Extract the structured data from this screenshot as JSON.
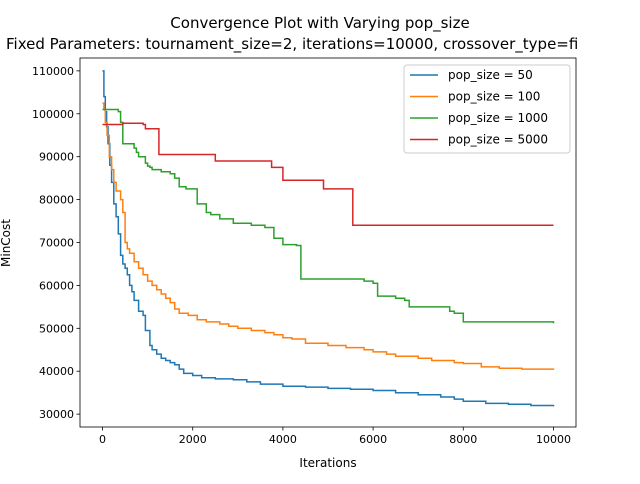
{
  "chart_data": {
    "type": "line",
    "title": "Convergence Plot with Varying pop_size",
    "subtitle": "Fixed Parameters: tournament_size=2, iterations=10000, crossover_type=fi",
    "xlabel": "Iterations",
    "ylabel": "MinCost",
    "xlim": [
      -500,
      10500
    ],
    "ylim": [
      27000,
      113000
    ],
    "xticks": [
      0,
      2000,
      4000,
      6000,
      8000,
      10000
    ],
    "yticks": [
      30000,
      40000,
      50000,
      60000,
      70000,
      80000,
      90000,
      100000,
      110000
    ],
    "xtick_labels": [
      "0",
      "2000",
      "4000",
      "6000",
      "8000",
      "10000"
    ],
    "ytick_labels": [
      "30000",
      "40000",
      "50000",
      "60000",
      "70000",
      "80000",
      "90000",
      "100000",
      "110000"
    ],
    "grid": false,
    "legend_position": "top-right",
    "series": [
      {
        "name": "pop_size = 50",
        "color": "#1f77b4",
        "points": [
          [
            0,
            110000
          ],
          [
            30,
            104000
          ],
          [
            60,
            100500
          ],
          [
            90,
            97000
          ],
          [
            120,
            93000
          ],
          [
            160,
            88000
          ],
          [
            200,
            84000
          ],
          [
            250,
            79000
          ],
          [
            300,
            76000
          ],
          [
            350,
            72000
          ],
          [
            400,
            67000
          ],
          [
            450,
            65000
          ],
          [
            500,
            64000
          ],
          [
            550,
            62500
          ],
          [
            600,
            60000
          ],
          [
            650,
            58500
          ],
          [
            700,
            56500
          ],
          [
            800,
            54000
          ],
          [
            900,
            53000
          ],
          [
            950,
            49500
          ],
          [
            1050,
            46000
          ],
          [
            1100,
            45000
          ],
          [
            1200,
            44000
          ],
          [
            1300,
            43000
          ],
          [
            1400,
            42500
          ],
          [
            1500,
            42000
          ],
          [
            1600,
            41500
          ],
          [
            1700,
            40500
          ],
          [
            1800,
            39500
          ],
          [
            2000,
            39000
          ],
          [
            2200,
            38500
          ],
          [
            2500,
            38200
          ],
          [
            2900,
            38000
          ],
          [
            3200,
            37500
          ],
          [
            3500,
            37000
          ],
          [
            4000,
            36500
          ],
          [
            4500,
            36300
          ],
          [
            5000,
            36000
          ],
          [
            5500,
            35800
          ],
          [
            6000,
            35500
          ],
          [
            6500,
            35000
          ],
          [
            7000,
            34500
          ],
          [
            7500,
            34000
          ],
          [
            7800,
            33500
          ],
          [
            8000,
            33000
          ],
          [
            8500,
            32500
          ],
          [
            9000,
            32300
          ],
          [
            9500,
            32000
          ],
          [
            10000,
            31800
          ]
        ]
      },
      {
        "name": "pop_size = 100",
        "color": "#ff7f0e",
        "points": [
          [
            0,
            102500
          ],
          [
            30,
            101000
          ],
          [
            60,
            98000
          ],
          [
            100,
            95000
          ],
          [
            150,
            90000
          ],
          [
            200,
            87000
          ],
          [
            250,
            84000
          ],
          [
            300,
            82000
          ],
          [
            400,
            80000
          ],
          [
            450,
            77000
          ],
          [
            500,
            70000
          ],
          [
            550,
            68500
          ],
          [
            600,
            67500
          ],
          [
            700,
            65500
          ],
          [
            800,
            64000
          ],
          [
            900,
            62500
          ],
          [
            1000,
            61000
          ],
          [
            1100,
            60000
          ],
          [
            1200,
            59000
          ],
          [
            1300,
            58000
          ],
          [
            1400,
            57000
          ],
          [
            1500,
            56000
          ],
          [
            1600,
            54500
          ],
          [
            1700,
            53500
          ],
          [
            1900,
            53000
          ],
          [
            2100,
            52000
          ],
          [
            2300,
            51500
          ],
          [
            2600,
            51000
          ],
          [
            2800,
            50500
          ],
          [
            3000,
            50000
          ],
          [
            3300,
            49500
          ],
          [
            3600,
            49000
          ],
          [
            3800,
            48500
          ],
          [
            4000,
            47800
          ],
          [
            4200,
            47500
          ],
          [
            4500,
            46500
          ],
          [
            5000,
            46000
          ],
          [
            5400,
            45500
          ],
          [
            5800,
            45000
          ],
          [
            6000,
            44500
          ],
          [
            6300,
            44000
          ],
          [
            6500,
            43500
          ],
          [
            7000,
            43000
          ],
          [
            7300,
            42500
          ],
          [
            7800,
            42000
          ],
          [
            8000,
            41800
          ],
          [
            8400,
            41000
          ],
          [
            8800,
            40700
          ],
          [
            9300,
            40500
          ],
          [
            10000,
            40300
          ]
        ]
      },
      {
        "name": "pop_size = 1000",
        "color": "#2ca02c",
        "points": [
          [
            0,
            101000
          ],
          [
            300,
            101000
          ],
          [
            350,
            100500
          ],
          [
            400,
            98000
          ],
          [
            450,
            93000
          ],
          [
            700,
            92000
          ],
          [
            750,
            91000
          ],
          [
            800,
            90000
          ],
          [
            950,
            88500
          ],
          [
            1000,
            87800
          ],
          [
            1050,
            87500
          ],
          [
            1100,
            87000
          ],
          [
            1300,
            86500
          ],
          [
            1500,
            86000
          ],
          [
            1600,
            85000
          ],
          [
            1700,
            83000
          ],
          [
            1850,
            82500
          ],
          [
            2100,
            79000
          ],
          [
            2300,
            77000
          ],
          [
            2400,
            76500
          ],
          [
            2600,
            75500
          ],
          [
            2900,
            74500
          ],
          [
            3300,
            74000
          ],
          [
            3600,
            73500
          ],
          [
            3800,
            71000
          ],
          [
            4000,
            69500
          ],
          [
            4300,
            69300
          ],
          [
            4400,
            61500
          ],
          [
            5000,
            61500
          ],
          [
            5500,
            61500
          ],
          [
            5800,
            61000
          ],
          [
            6000,
            60500
          ],
          [
            6100,
            57500
          ],
          [
            6500,
            57000
          ],
          [
            6700,
            56500
          ],
          [
            6800,
            55000
          ],
          [
            7100,
            55000
          ],
          [
            7500,
            55000
          ],
          [
            7700,
            54000
          ],
          [
            7800,
            53500
          ],
          [
            8000,
            51500
          ],
          [
            9000,
            51500
          ],
          [
            9500,
            51500
          ],
          [
            10000,
            51200
          ]
        ]
      },
      {
        "name": "pop_size = 5000",
        "color": "#d62728",
        "points": [
          [
            0,
            97500
          ],
          [
            400,
            97500
          ],
          [
            450,
            97800
          ],
          [
            900,
            97500
          ],
          [
            950,
            96500
          ],
          [
            1200,
            96500
          ],
          [
            1250,
            90500
          ],
          [
            2000,
            90500
          ],
          [
            2500,
            89000
          ],
          [
            3300,
            89000
          ],
          [
            3700,
            89000
          ],
          [
            3750,
            87500
          ],
          [
            3950,
            87500
          ],
          [
            4000,
            84500
          ],
          [
            4800,
            84500
          ],
          [
            4900,
            82500
          ],
          [
            5000,
            82500
          ],
          [
            5500,
            82500
          ],
          [
            5550,
            74000
          ],
          [
            7000,
            74000
          ],
          [
            8500,
            74000
          ],
          [
            10000,
            74000
          ]
        ]
      }
    ]
  }
}
